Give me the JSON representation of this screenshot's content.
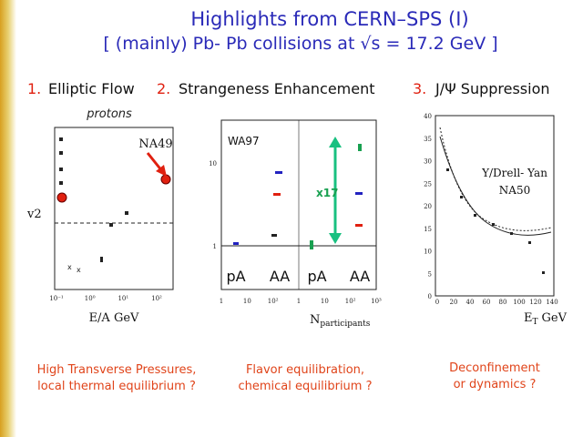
{
  "title": "Highlights from CERN–SPS (I)",
  "subtitle": "[ (mainly) Pb- Pb collisions at √s = 17.2 GeV ]",
  "topics": [
    {
      "number": "1.",
      "label": "Elliptic Flow"
    },
    {
      "number": "2.",
      "label": "Strangeness Enhancement"
    },
    {
      "number": "3.",
      "label": "J/Ψ Suppression"
    }
  ],
  "panels": [
    {
      "heading": "protons",
      "tag": "NA49",
      "y_label": "v2",
      "x_label": "E/A  GeV",
      "x_ticks": [
        "10⁻¹",
        "10⁰",
        "10¹",
        "10²"
      ]
    },
    {
      "tag": "WA97",
      "factor": "x17",
      "groups": [
        "pA",
        "AA",
        "pA",
        "AA"
      ],
      "y_ticks": [
        "1",
        "10"
      ],
      "x_ticks": [
        "1",
        "10",
        "10²",
        "1",
        "10",
        "10²",
        "10³"
      ],
      "x_label": "N",
      "x_label_sub": "participants"
    },
    {
      "tag": "Y/Drell- Yan",
      "experiment": "NA50",
      "x_label": "E",
      "x_label_sub": "T",
      "x_label_unit": "GeV",
      "x_ticks": [
        "0",
        "20",
        "40",
        "60",
        "80",
        "100",
        "120",
        "140"
      ],
      "y_ticks": [
        "0",
        "5",
        "10",
        "15",
        "20",
        "25",
        "30",
        "35",
        "40"
      ]
    }
  ],
  "captions": [
    [
      "High Transverse Pressures,",
      "local thermal equilibrium ?"
    ],
    [
      "Flavor equilibration,",
      "chemical equilibrium ?"
    ],
    [
      "Deconfinement",
      "or dynamics ?"
    ]
  ]
}
